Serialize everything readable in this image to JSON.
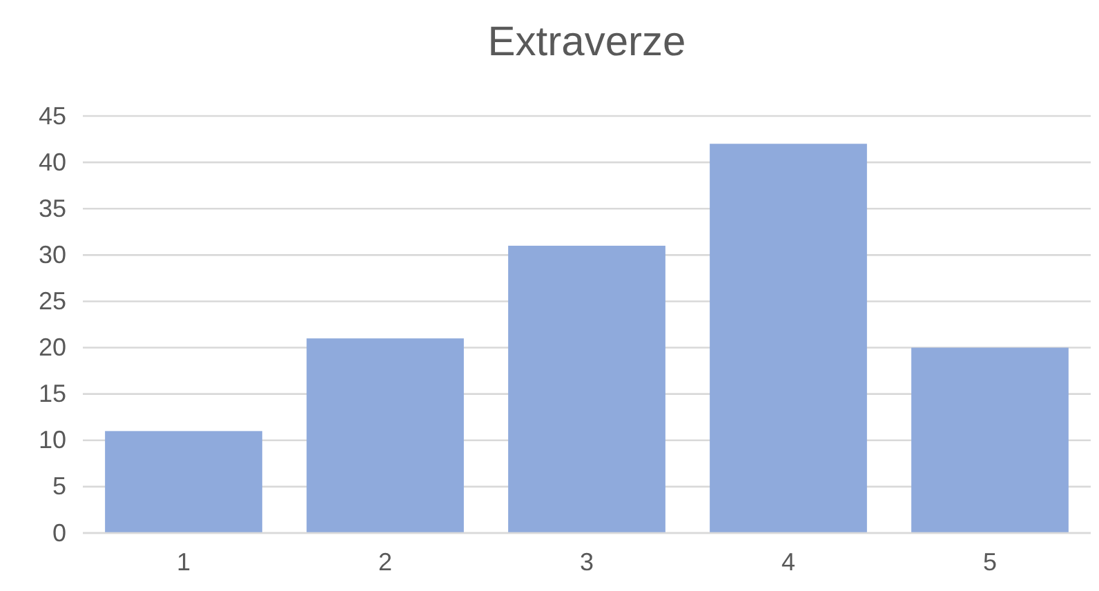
{
  "chart_data": {
    "type": "bar",
    "title": "Extraverze",
    "categories": [
      "1",
      "2",
      "3",
      "4",
      "5"
    ],
    "values": [
      11,
      21,
      31,
      42,
      20
    ],
    "color": "#8faadc",
    "ylim": [
      0,
      45
    ],
    "yticks": [
      0,
      5,
      10,
      15,
      20,
      25,
      30,
      35,
      40,
      45
    ],
    "grid": "y"
  }
}
